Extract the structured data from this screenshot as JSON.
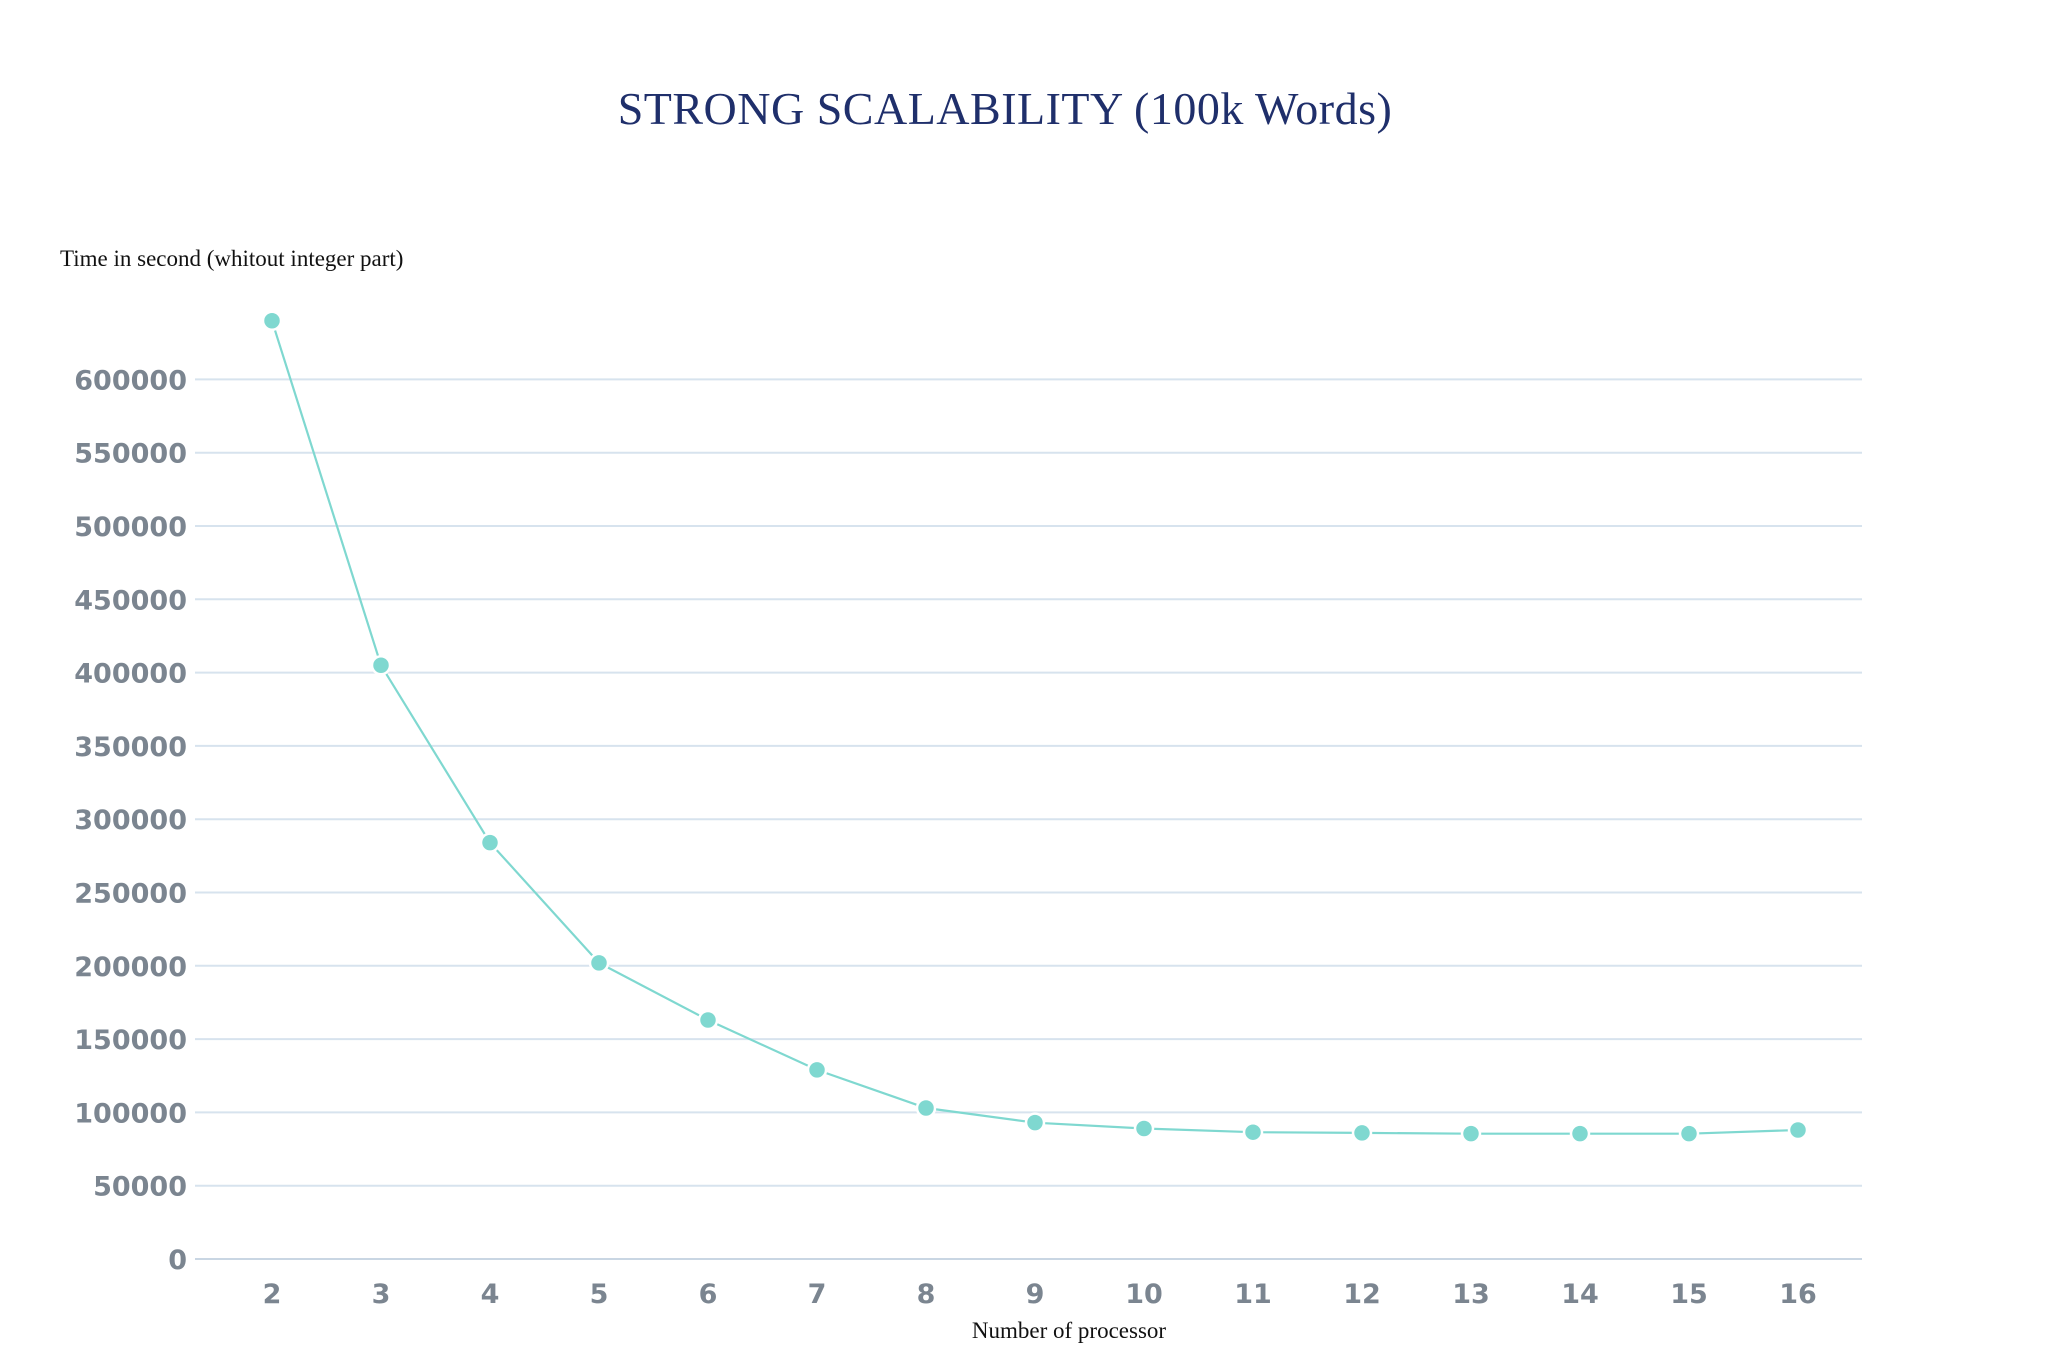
{
  "chart_data": {
    "type": "line",
    "title": "STRONG SCALABILITY (100k Words)",
    "ylabel": "Time in second (whitout integer part)",
    "xlabel": "Number of processor",
    "categories": [
      "2",
      "3",
      "4",
      "5",
      "6",
      "7",
      "8",
      "9",
      "10",
      "11",
      "12",
      "13",
      "14",
      "15",
      "16"
    ],
    "series": [
      {
        "values": [
          640000,
          405000,
          284000,
          202000,
          163000,
          129000,
          103000,
          93000,
          89000,
          86500,
          86000,
          85500,
          85500,
          85500,
          88000
        ],
        "color": "#7fd8d0"
      }
    ],
    "ylim": [
      0,
      600000
    ],
    "yticks": [
      "0",
      "50000",
      "100000",
      "150000",
      "200000",
      "250000",
      "300000",
      "350000",
      "400000",
      "450000",
      "500000",
      "550000",
      "600000"
    ],
    "grid": true,
    "legend": "none"
  }
}
